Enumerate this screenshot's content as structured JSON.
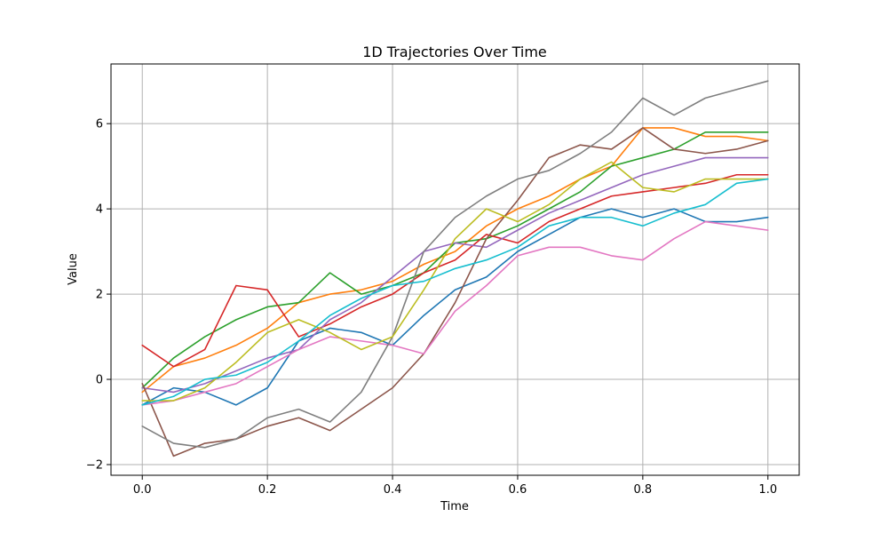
{
  "chart_data": {
    "type": "line",
    "title": "1D Trajectories Over Time",
    "xlabel": "Time",
    "ylabel": "Value",
    "xlim": [
      -0.05,
      1.05
    ],
    "ylim": [
      -2.25,
      7.4
    ],
    "xticks": [
      0.0,
      0.2,
      0.4,
      0.6,
      0.8,
      1.0
    ],
    "xtick_labels": [
      "0.0",
      "0.2",
      "0.4",
      "0.6",
      "0.8",
      "1.0"
    ],
    "yticks": [
      -2,
      0,
      2,
      4,
      6
    ],
    "ytick_labels": [
      "−2",
      "0",
      "2",
      "4",
      "6"
    ],
    "grid": true,
    "x": [
      0.0,
      0.05,
      0.1,
      0.15,
      0.2,
      0.25,
      0.3,
      0.35,
      0.4,
      0.45,
      0.5,
      0.55,
      0.6,
      0.65,
      0.7,
      0.75,
      0.8,
      0.85,
      0.9,
      0.95,
      1.0
    ],
    "series": [
      {
        "color": "#1f77b4",
        "values": [
          -0.6,
          -0.2,
          -0.3,
          -0.6,
          -0.2,
          0.9,
          1.2,
          1.1,
          0.8,
          1.5,
          2.1,
          2.4,
          3.0,
          3.4,
          3.8,
          4.0,
          3.8,
          4.0,
          3.7,
          3.7,
          3.8
        ]
      },
      {
        "color": "#ff7f0e",
        "values": [
          -0.3,
          0.3,
          0.5,
          0.8,
          1.2,
          1.8,
          2.0,
          2.1,
          2.3,
          2.7,
          3.0,
          3.6,
          4.0,
          4.3,
          4.7,
          5.0,
          5.9,
          5.9,
          5.7,
          5.7,
          5.6
        ]
      },
      {
        "color": "#2ca02c",
        "values": [
          -0.2,
          0.5,
          1.0,
          1.4,
          1.7,
          1.8,
          2.5,
          2.0,
          2.2,
          2.5,
          3.2,
          3.3,
          3.6,
          4.0,
          4.4,
          5.0,
          5.2,
          5.4,
          5.8,
          5.8,
          5.8
        ]
      },
      {
        "color": "#d62728",
        "values": [
          0.8,
          0.3,
          0.7,
          2.2,
          2.1,
          1.0,
          1.3,
          1.7,
          2.0,
          2.5,
          2.8,
          3.4,
          3.2,
          3.7,
          4.0,
          4.3,
          4.4,
          4.5,
          4.6,
          4.8,
          4.8
        ]
      },
      {
        "color": "#9467bd",
        "values": [
          -0.2,
          -0.3,
          -0.1,
          0.2,
          0.5,
          0.7,
          1.4,
          1.8,
          2.4,
          3.0,
          3.2,
          3.1,
          3.5,
          3.9,
          4.2,
          4.5,
          4.8,
          5.0,
          5.2,
          5.2,
          5.2
        ]
      },
      {
        "color": "#8c564b",
        "values": [
          -0.1,
          -1.8,
          -1.5,
          -1.4,
          -1.1,
          -0.9,
          -1.2,
          -0.7,
          -0.2,
          0.6,
          1.8,
          3.3,
          4.2,
          5.2,
          5.5,
          5.4,
          5.9,
          5.4,
          5.3,
          5.4,
          5.6
        ]
      },
      {
        "color": "#e377c2",
        "values": [
          -0.6,
          -0.5,
          -0.3,
          -0.1,
          0.3,
          0.7,
          1.0,
          0.9,
          0.8,
          0.6,
          1.6,
          2.2,
          2.9,
          3.1,
          3.1,
          2.9,
          2.8,
          3.3,
          3.7,
          3.6,
          3.5
        ]
      },
      {
        "color": "#7f7f7f",
        "values": [
          -1.1,
          -1.5,
          -1.6,
          -1.4,
          -0.9,
          -0.7,
          -1.0,
          -0.3,
          1.0,
          3.0,
          3.8,
          4.3,
          4.7,
          4.9,
          5.3,
          5.8,
          6.6,
          6.2,
          6.6,
          6.8,
          7.0
        ]
      },
      {
        "color": "#bcbd22",
        "values": [
          -0.5,
          -0.5,
          -0.2,
          0.4,
          1.1,
          1.4,
          1.1,
          0.7,
          1.0,
          2.1,
          3.3,
          4.0,
          3.7,
          4.1,
          4.7,
          5.1,
          4.5,
          4.4,
          4.7,
          4.7,
          4.7
        ]
      },
      {
        "color": "#17becf",
        "values": [
          -0.6,
          -0.4,
          0.0,
          0.1,
          0.4,
          0.9,
          1.5,
          1.9,
          2.2,
          2.3,
          2.6,
          2.8,
          3.1,
          3.6,
          3.8,
          3.8,
          3.6,
          3.9,
          4.1,
          4.6,
          4.7
        ]
      }
    ]
  }
}
